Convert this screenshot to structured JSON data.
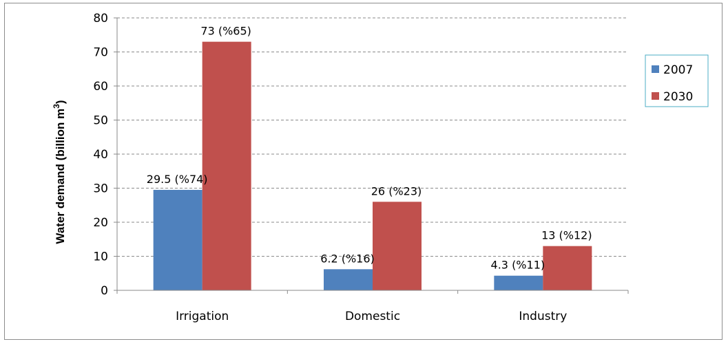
{
  "chart_data": {
    "type": "bar",
    "title": "",
    "xlabel": "",
    "ylabel_main": "Water demand (billion m",
    "ylabel_sup": "3",
    "ylabel_end": ")",
    "ylim": [
      0,
      80
    ],
    "ytick_step": 10,
    "grid": true,
    "legend_position": "right",
    "categories": [
      "Irrigation",
      "Domestic",
      "Industry"
    ],
    "series": [
      {
        "name": "2007",
        "color": "#4f81bd",
        "values": [
          29.5,
          6.2,
          4.3
        ],
        "labels": [
          "29.5 (%74)",
          "6.2 (%16)",
          "4.3 (%11)"
        ]
      },
      {
        "name": "2030",
        "color": "#c0504d",
        "values": [
          73,
          26,
          13
        ],
        "labels": [
          "73 (%65)",
          "26 (%23)",
          "13 (%12)"
        ]
      }
    ]
  }
}
